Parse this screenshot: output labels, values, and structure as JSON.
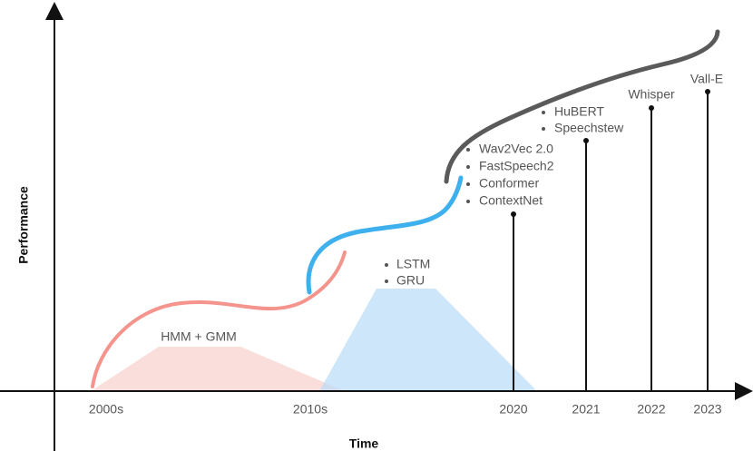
{
  "axes": {
    "x_label": "Time",
    "y_label": "Performance"
  },
  "time_labels": [
    "2000s",
    "2010s",
    "2020",
    "2021",
    "2022",
    "2023"
  ],
  "eras": [
    {
      "items": [
        "HMM + GMM"
      ]
    },
    {
      "items": [
        "LSTM",
        "GRU"
      ]
    }
  ],
  "milestones": [
    {
      "items": [
        "Wav2Vec 2.0",
        "FastSpeech2",
        "Conformer",
        "ContextNet"
      ]
    },
    {
      "items": [
        "HuBERT",
        "Speechstew"
      ]
    },
    {
      "items": [
        "Whisper"
      ]
    },
    {
      "items": [
        "Vall-E"
      ]
    }
  ]
}
